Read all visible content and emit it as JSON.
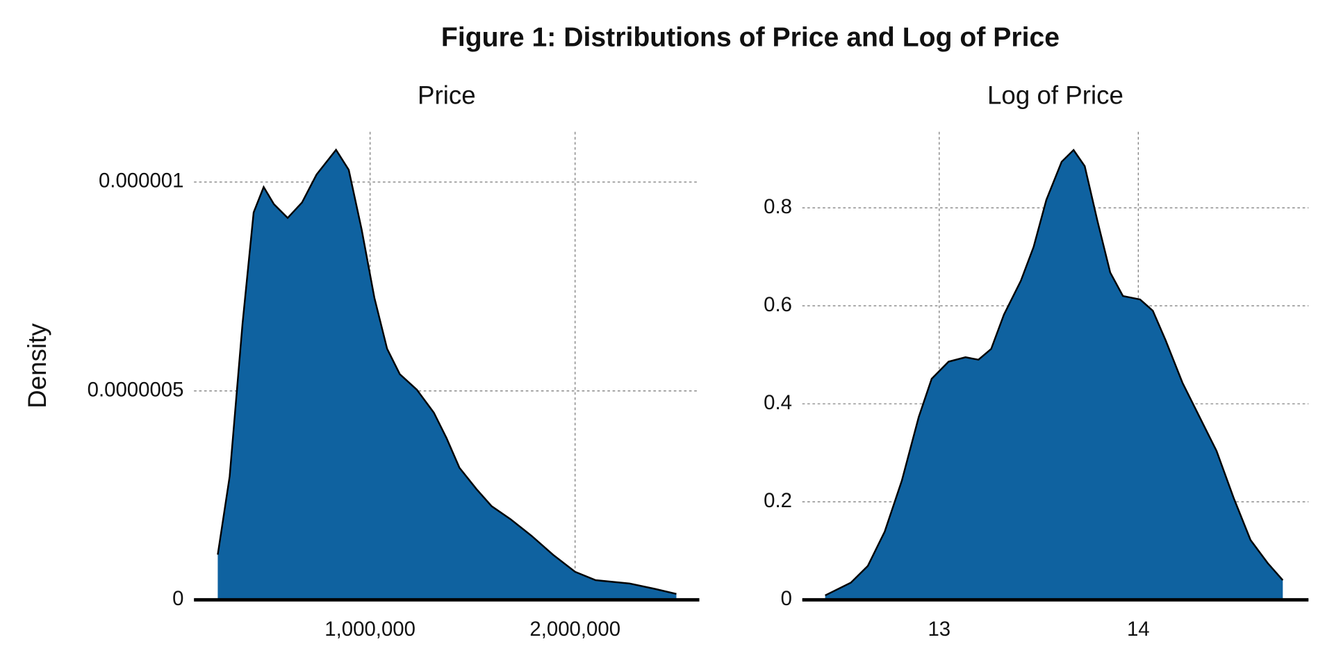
{
  "title": "Figure 1: Distributions of Price and Log of Price",
  "chart_data": [
    {
      "type": "area",
      "title": "Price",
      "ylabel": "Density",
      "color": "#0f62a0",
      "grid": true,
      "x": [
        257000,
        315000,
        378000,
        432000,
        481000,
        531000,
        598000,
        668000,
        739000,
        834000,
        896000,
        959000,
        1021000,
        1083000,
        1145000,
        1228000,
        1311000,
        1373000,
        1436000,
        1519000,
        1593000,
        1685000,
        1788000,
        1892000,
        2000000,
        2100000,
        2266000,
        2390000,
        2494000
      ],
      "values": [
        1.08e-07,
        2.95e-07,
        6.62e-07,
        9.27e-07,
        9.88e-07,
        9.47e-07,
        9.14e-07,
        9.51e-07,
        1.018e-06,
        1.077e-06,
        1.029e-06,
        8.86e-07,
        7.23e-07,
        6.01e-07,
        5.4e-07,
        5.03e-07,
        4.48e-07,
        3.87e-07,
        3.16e-07,
        2.65e-07,
        2.24e-07,
        1.93e-07,
        1.53e-07,
        1.08e-07,
        6.7e-08,
        4.7e-08,
        3.9e-08,
        2.6e-08,
        1.4e-08
      ],
      "xlim": [
        141000,
        2606000
      ],
      "ylim": [
        0,
        1.12e-06
      ],
      "xticks": [
        {
          "value": 1000000,
          "label": "1,000,000"
        },
        {
          "value": 2000000,
          "label": "2,000,000"
        }
      ],
      "yticks": [
        0,
        {
          "value": 5e-07,
          "label": "0.0000005"
        },
        {
          "value": 1e-06,
          "label": "0.000001"
        }
      ]
    },
    {
      "type": "area",
      "title": "Log of Price",
      "color": "#0f62a0",
      "grid": true,
      "x": [
        12.427,
        12.556,
        12.641,
        12.726,
        12.812,
        12.897,
        12.962,
        13.047,
        13.132,
        13.197,
        13.261,
        13.325,
        13.41,
        13.474,
        13.538,
        13.615,
        13.675,
        13.731,
        13.795,
        13.859,
        13.923,
        14.009,
        14.073,
        14.137,
        14.222,
        14.308,
        14.393,
        14.479,
        14.564,
        14.65,
        14.726
      ],
      "values": [
        0.009,
        0.035,
        0.069,
        0.139,
        0.243,
        0.373,
        0.451,
        0.486,
        0.495,
        0.49,
        0.512,
        0.582,
        0.651,
        0.72,
        0.816,
        0.894,
        0.918,
        0.885,
        0.773,
        0.668,
        0.62,
        0.613,
        0.59,
        0.53,
        0.443,
        0.373,
        0.304,
        0.208,
        0.122,
        0.075,
        0.04
      ],
      "xlim": [
        12.312,
        14.855
      ],
      "ylim": [
        0,
        0.955
      ],
      "xticks": [
        13,
        14
      ],
      "yticks": [
        0,
        0.2,
        0.4,
        0.6,
        0.8
      ]
    }
  ]
}
